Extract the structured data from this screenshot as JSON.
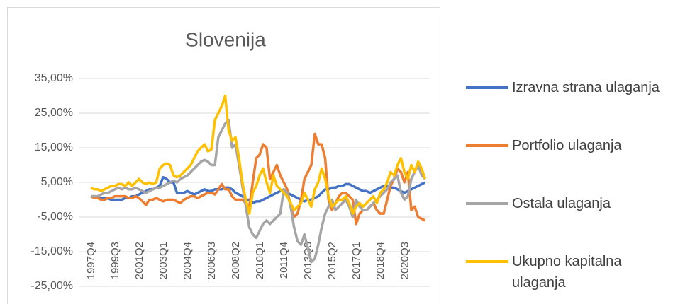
{
  "chart_data": {
    "type": "line",
    "title": "Slovenija",
    "categories": [
      "1997Q4",
      null,
      null,
      null,
      null,
      null,
      null,
      "1999Q3",
      null,
      null,
      null,
      null,
      null,
      null,
      "2001Q2",
      null,
      null,
      null,
      null,
      null,
      null,
      "2003Q1",
      null,
      null,
      null,
      null,
      null,
      null,
      "2004Q4",
      null,
      null,
      null,
      null,
      null,
      null,
      "2006Q3",
      null,
      null,
      null,
      null,
      null,
      null,
      "2008Q2",
      null,
      null,
      null,
      null,
      null,
      null,
      "2010Q1",
      null,
      null,
      null,
      null,
      null,
      null,
      "2011Q4",
      null,
      null,
      null,
      null,
      null,
      null,
      "2013Q3",
      null,
      null,
      null,
      null,
      null,
      null,
      "2015Q2",
      null,
      null,
      null,
      null,
      null,
      null,
      "2017Q1",
      null,
      null,
      null,
      null,
      null,
      null,
      "2018Q4",
      null,
      null,
      null,
      null,
      null,
      null,
      "2020Q3",
      null,
      null,
      null,
      null,
      null,
      null
    ],
    "ylim": [
      -25,
      35
    ],
    "yticks": [
      {
        "value": -25,
        "label": "-25,00%"
      },
      {
        "value": -15,
        "label": "-15,00%"
      },
      {
        "value": -5,
        "label": "-5,00%"
      },
      {
        "value": 5,
        "label": "5,00%"
      },
      {
        "value": 15,
        "label": "15,00%"
      },
      {
        "value": 25,
        "label": "25,00%"
      },
      {
        "value": 35,
        "label": "35,00%"
      }
    ],
    "grid": true,
    "legend": "right",
    "series": [
      {
        "name": "Izravna strana ulaganja",
        "color": "#4472c4",
        "values": [
          1,
          1,
          0.5,
          0.5,
          0.5,
          0.3,
          0,
          0,
          0,
          0,
          0.5,
          0.5,
          1,
          1,
          1.5,
          2,
          2.5,
          3,
          3,
          3.5,
          4,
          6.5,
          6,
          5,
          5,
          2,
          2,
          2,
          2.5,
          2,
          1.5,
          2,
          2.5,
          3,
          2.5,
          2.5,
          3,
          3,
          3,
          3.5,
          3.5,
          3,
          2,
          1.5,
          1,
          0,
          0,
          -1,
          -0.5,
          -0.5,
          0,
          0.5,
          1,
          1.5,
          2,
          2.5,
          3,
          2,
          1.5,
          1,
          0.5,
          0,
          -0.5,
          0,
          0,
          0.5,
          1,
          2,
          3,
          3,
          3.5,
          3.5,
          4,
          4,
          4.5,
          4.5,
          4,
          3.5,
          3,
          2.5,
          2.5,
          2,
          2.5,
          3,
          3.5,
          4,
          4,
          3.5,
          3.5,
          3,
          2.5,
          2,
          2.5,
          3,
          3.5,
          4,
          4.5,
          5
        ]
      },
      {
        "name": "Portfolio ulaganja",
        "color": "#ed7d31",
        "values": [
          1,
          0.5,
          0.5,
          0,
          0,
          0.5,
          0.5,
          1,
          1,
          1,
          1,
          0.5,
          0.5,
          1,
          0.5,
          -0.5,
          -1.5,
          0,
          0,
          0.5,
          0,
          -0.5,
          0,
          0,
          0,
          -0.5,
          -1,
          0,
          0.5,
          1,
          1,
          0.5,
          1,
          1.5,
          2,
          2,
          1.5,
          3,
          4.5,
          3,
          3,
          1,
          0,
          0,
          0,
          -1,
          -2,
          5,
          12,
          13,
          16,
          15,
          6,
          8,
          10,
          7,
          5,
          3,
          -2,
          -5,
          -4,
          0,
          6,
          8,
          10,
          19,
          16,
          16,
          12,
          0,
          -3,
          -1,
          1,
          2,
          2,
          1,
          0,
          -7,
          -4,
          -3,
          -3,
          -2,
          -1,
          -3,
          -4,
          -4,
          0,
          4,
          6,
          9,
          8,
          5,
          8,
          -3,
          -2,
          -5,
          -5.5,
          -6
        ]
      },
      {
        "name": "Ostala ulaganja",
        "color": "#a5a5a5",
        "values": [
          1,
          1,
          1,
          1.5,
          2,
          2,
          2.5,
          3,
          3.5,
          3,
          3.5,
          3,
          3,
          3.5,
          3,
          2.5,
          2,
          2.5,
          3,
          3.5,
          3.5,
          4,
          4.5,
          5,
          5.5,
          5,
          6,
          6.5,
          7,
          8,
          9,
          10,
          11,
          11.5,
          11,
          10,
          10,
          18,
          20,
          22,
          23,
          15,
          16,
          10,
          4,
          -2,
          -8,
          -10,
          -11,
          -9,
          -7,
          -6,
          -7,
          -6,
          -5,
          -4,
          3,
          2,
          -2,
          -8,
          -12,
          -13,
          -10,
          -14,
          -18,
          -17,
          -13,
          -8,
          -4,
          -2,
          0,
          -3,
          -2,
          -1,
          0,
          -2,
          -5,
          0,
          -2,
          -3,
          -3,
          -2,
          -1,
          0,
          1,
          2,
          3,
          5,
          6,
          7,
          2,
          0,
          1,
          6,
          8,
          10,
          7,
          6
        ]
      },
      {
        "name": "Ukupno kapitalna ulaganja",
        "color": "#ffc000",
        "values": [
          3.5,
          3,
          3,
          2.5,
          3,
          3.5,
          4,
          4,
          4.5,
          4.5,
          4,
          5,
          4,
          5,
          6,
          5,
          4.5,
          5,
          4.5,
          5,
          9,
          10,
          10.5,
          10,
          7,
          6.5,
          7,
          8,
          9,
          10,
          12,
          14,
          15,
          16,
          14,
          14.5,
          23,
          25,
          27,
          30,
          20,
          17,
          18,
          12,
          5,
          0,
          -4,
          2,
          4,
          7,
          9,
          5,
          2,
          7,
          4,
          3,
          2,
          1,
          -1,
          -3,
          -2,
          -1,
          2,
          0,
          -2,
          3,
          5,
          9,
          6,
          1,
          -2,
          -1,
          0,
          0,
          1,
          -1,
          -4,
          -2,
          -1,
          -2,
          -1,
          0,
          1,
          -1,
          2,
          3,
          5,
          8,
          7,
          10,
          12,
          8,
          6,
          10,
          8,
          11,
          9,
          6
        ]
      }
    ]
  }
}
